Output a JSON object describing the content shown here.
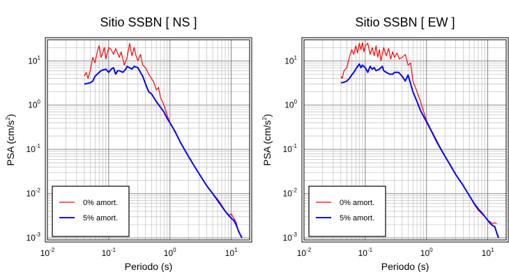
{
  "chart_data": [
    {
      "type": "line",
      "title": "Sitio SSBN [ NS ]",
      "xlabel": "Periodo (s)",
      "ylabel_base": "PSA (cm/s",
      "ylabel_exp": "2",
      "ylabel_tail": ")",
      "xscale": "log",
      "yscale": "log",
      "xlim": [
        0.01,
        20
      ],
      "ylim": [
        0.0009,
        30
      ],
      "grid": true,
      "legend_position": "bottom-left",
      "xticks": [
        {
          "value": 0.01,
          "base": "10",
          "exp": "-2"
        },
        {
          "value": 0.1,
          "base": "10",
          "exp": "-1"
        },
        {
          "value": 1,
          "base": "10",
          "exp": "0"
        },
        {
          "value": 10,
          "base": "10",
          "exp": "1"
        }
      ],
      "yticks": [
        {
          "value": 0.001,
          "base": "10",
          "exp": "-3"
        },
        {
          "value": 0.01,
          "base": "10",
          "exp": "-2"
        },
        {
          "value": 0.1,
          "base": "10",
          "exp": "-1"
        },
        {
          "value": 1,
          "base": "10",
          "exp": "0"
        },
        {
          "value": 10,
          "base": "10",
          "exp": "1"
        }
      ],
      "series": [
        {
          "name": "0% amort.",
          "color": "#ff0000",
          "width": 1.2,
          "x": [
            0.04,
            0.043,
            0.046,
            0.05,
            0.055,
            0.06,
            0.065,
            0.07,
            0.075,
            0.08,
            0.085,
            0.09,
            0.1,
            0.11,
            0.12,
            0.13,
            0.14,
            0.15,
            0.16,
            0.18,
            0.2,
            0.22,
            0.24,
            0.26,
            0.28,
            0.3,
            0.33,
            0.36,
            0.4,
            0.45,
            0.5,
            0.55,
            0.6,
            0.65,
            0.7,
            0.8,
            0.9,
            1.0,
            1.2,
            1.5,
            2,
            2.5,
            3,
            4,
            5,
            6,
            7,
            8,
            9,
            10,
            11,
            12,
            13,
            14
          ],
          "y": [
            4.5,
            5.5,
            4.0,
            6.0,
            12.0,
            9.0,
            16.0,
            22.0,
            12.0,
            15.0,
            20.0,
            11.0,
            20.0,
            18.0,
            14.0,
            19.0,
            15.0,
            12.0,
            16.0,
            8.0,
            12.0,
            25.0,
            13.0,
            20.0,
            13.0,
            10.0,
            14.0,
            8.0,
            7.0,
            5.0,
            4.0,
            3.2,
            2.2,
            2.5,
            1.5,
            1.0,
            0.6,
            0.4,
            0.25,
            0.14,
            0.07,
            0.042,
            0.028,
            0.015,
            0.01,
            0.0075,
            0.0055,
            0.004,
            0.0032,
            0.0035,
            0.0028,
            0.0023,
            0.0015,
            0.0012
          ]
        },
        {
          "name": "5% amort.",
          "color": "#0000ff",
          "width": 2,
          "x": [
            0.04,
            0.045,
            0.05,
            0.055,
            0.06,
            0.065,
            0.07,
            0.075,
            0.08,
            0.09,
            0.1,
            0.11,
            0.12,
            0.13,
            0.14,
            0.15,
            0.17,
            0.19,
            0.2,
            0.22,
            0.24,
            0.26,
            0.3,
            0.33,
            0.36,
            0.4,
            0.45,
            0.5,
            0.6,
            0.7,
            0.8,
            0.9,
            1.0,
            1.2,
            1.5,
            2,
            2.5,
            3,
            4,
            5,
            6,
            7,
            8,
            9,
            10,
            11,
            12,
            13,
            14,
            15
          ],
          "y": [
            3.0,
            3.1,
            3.2,
            3.5,
            4.5,
            5.0,
            5.5,
            6.0,
            6.2,
            6.5,
            5.5,
            6.5,
            7.0,
            5.0,
            6.0,
            6.0,
            5.5,
            6.5,
            7.5,
            7.0,
            6.5,
            7.5,
            7.0,
            5.5,
            4.5,
            3.0,
            2.0,
            1.8,
            1.2,
            0.9,
            0.7,
            0.5,
            0.4,
            0.26,
            0.14,
            0.07,
            0.042,
            0.028,
            0.015,
            0.01,
            0.007,
            0.0052,
            0.004,
            0.0033,
            0.0028,
            0.0025,
            0.002,
            0.0015,
            0.0012,
            0.001
          ]
        }
      ]
    },
    {
      "type": "line",
      "title": "Sitio SSBN [ EW ]",
      "xlabel": "Periodo (s)",
      "ylabel_base": "PSA (cm/s",
      "ylabel_exp": "2",
      "ylabel_tail": ")",
      "xscale": "log",
      "yscale": "log",
      "xlim": [
        0.01,
        20
      ],
      "ylim": [
        0.0009,
        30
      ],
      "grid": true,
      "legend_position": "bottom-left",
      "xticks": [
        {
          "value": 0.01,
          "base": "10",
          "exp": "-2"
        },
        {
          "value": 0.1,
          "base": "10",
          "exp": "-1"
        },
        {
          "value": 1,
          "base": "10",
          "exp": "0"
        },
        {
          "value": 10,
          "base": "10",
          "exp": "1"
        }
      ],
      "yticks": [
        {
          "value": 0.001,
          "base": "10",
          "exp": "-3"
        },
        {
          "value": 0.01,
          "base": "10",
          "exp": "-2"
        },
        {
          "value": 0.1,
          "base": "10",
          "exp": "-1"
        },
        {
          "value": 1,
          "base": "10",
          "exp": "0"
        },
        {
          "value": 10,
          "base": "10",
          "exp": "1"
        }
      ],
      "series": [
        {
          "name": "0% amort.",
          "color": "#ff0000",
          "width": 1.2,
          "x": [
            0.04,
            0.042,
            0.045,
            0.05,
            0.055,
            0.06,
            0.065,
            0.07,
            0.075,
            0.08,
            0.085,
            0.09,
            0.095,
            0.1,
            0.11,
            0.12,
            0.13,
            0.14,
            0.15,
            0.16,
            0.17,
            0.18,
            0.2,
            0.22,
            0.24,
            0.26,
            0.28,
            0.3,
            0.33,
            0.36,
            0.4,
            0.45,
            0.5,
            0.55,
            0.6,
            0.7,
            0.8,
            0.9,
            1.0,
            1.2,
            1.5,
            2,
            2.5,
            3,
            4,
            5,
            6,
            7,
            8,
            9,
            10,
            11,
            12,
            13,
            14
          ],
          "y": [
            4.5,
            4.0,
            6.0,
            7.0,
            12.0,
            18.0,
            14.0,
            22.0,
            15.0,
            25.0,
            18.0,
            26.0,
            16.0,
            22.0,
            25.0,
            14.0,
            20.0,
            13.0,
            22.0,
            12.0,
            18.0,
            10.0,
            20.0,
            13.0,
            19.0,
            11.0,
            16.0,
            12.0,
            15.0,
            11.0,
            12.0,
            14.0,
            8.0,
            9.0,
            3.5,
            2.0,
            1.2,
            0.7,
            0.45,
            0.27,
            0.15,
            0.07,
            0.04,
            0.027,
            0.015,
            0.009,
            0.0058,
            0.0042,
            0.0035,
            0.003,
            0.0025,
            0.0023,
            0.0021,
            0.0022,
            0.0021
          ]
        },
        {
          "name": "5% amort.",
          "color": "#0000ff",
          "width": 2,
          "x": [
            0.04,
            0.045,
            0.05,
            0.055,
            0.06,
            0.065,
            0.07,
            0.075,
            0.08,
            0.085,
            0.09,
            0.1,
            0.11,
            0.12,
            0.13,
            0.14,
            0.15,
            0.17,
            0.19,
            0.2,
            0.22,
            0.25,
            0.28,
            0.3,
            0.35,
            0.4,
            0.45,
            0.5,
            0.6,
            0.7,
            0.8,
            0.9,
            1.0,
            1.2,
            1.5,
            2,
            2.5,
            3,
            4,
            5,
            6,
            7,
            8,
            9,
            10,
            11,
            12,
            13,
            14,
            15
          ],
          "y": [
            3.2,
            3.3,
            3.5,
            4.0,
            4.8,
            5.5,
            6.5,
            7.5,
            8.5,
            7.0,
            8.0,
            7.0,
            5.5,
            7.5,
            6.5,
            7.0,
            6.0,
            6.5,
            7.5,
            6.0,
            5.5,
            5.0,
            5.0,
            5.5,
            5.5,
            4.5,
            3.5,
            4.8,
            2.0,
            1.2,
            0.75,
            0.55,
            0.42,
            0.26,
            0.14,
            0.07,
            0.042,
            0.027,
            0.015,
            0.009,
            0.006,
            0.0045,
            0.0037,
            0.003,
            0.0025,
            0.0021,
            0.0019,
            0.0018,
            0.0013,
            0.001
          ]
        }
      ]
    }
  ]
}
